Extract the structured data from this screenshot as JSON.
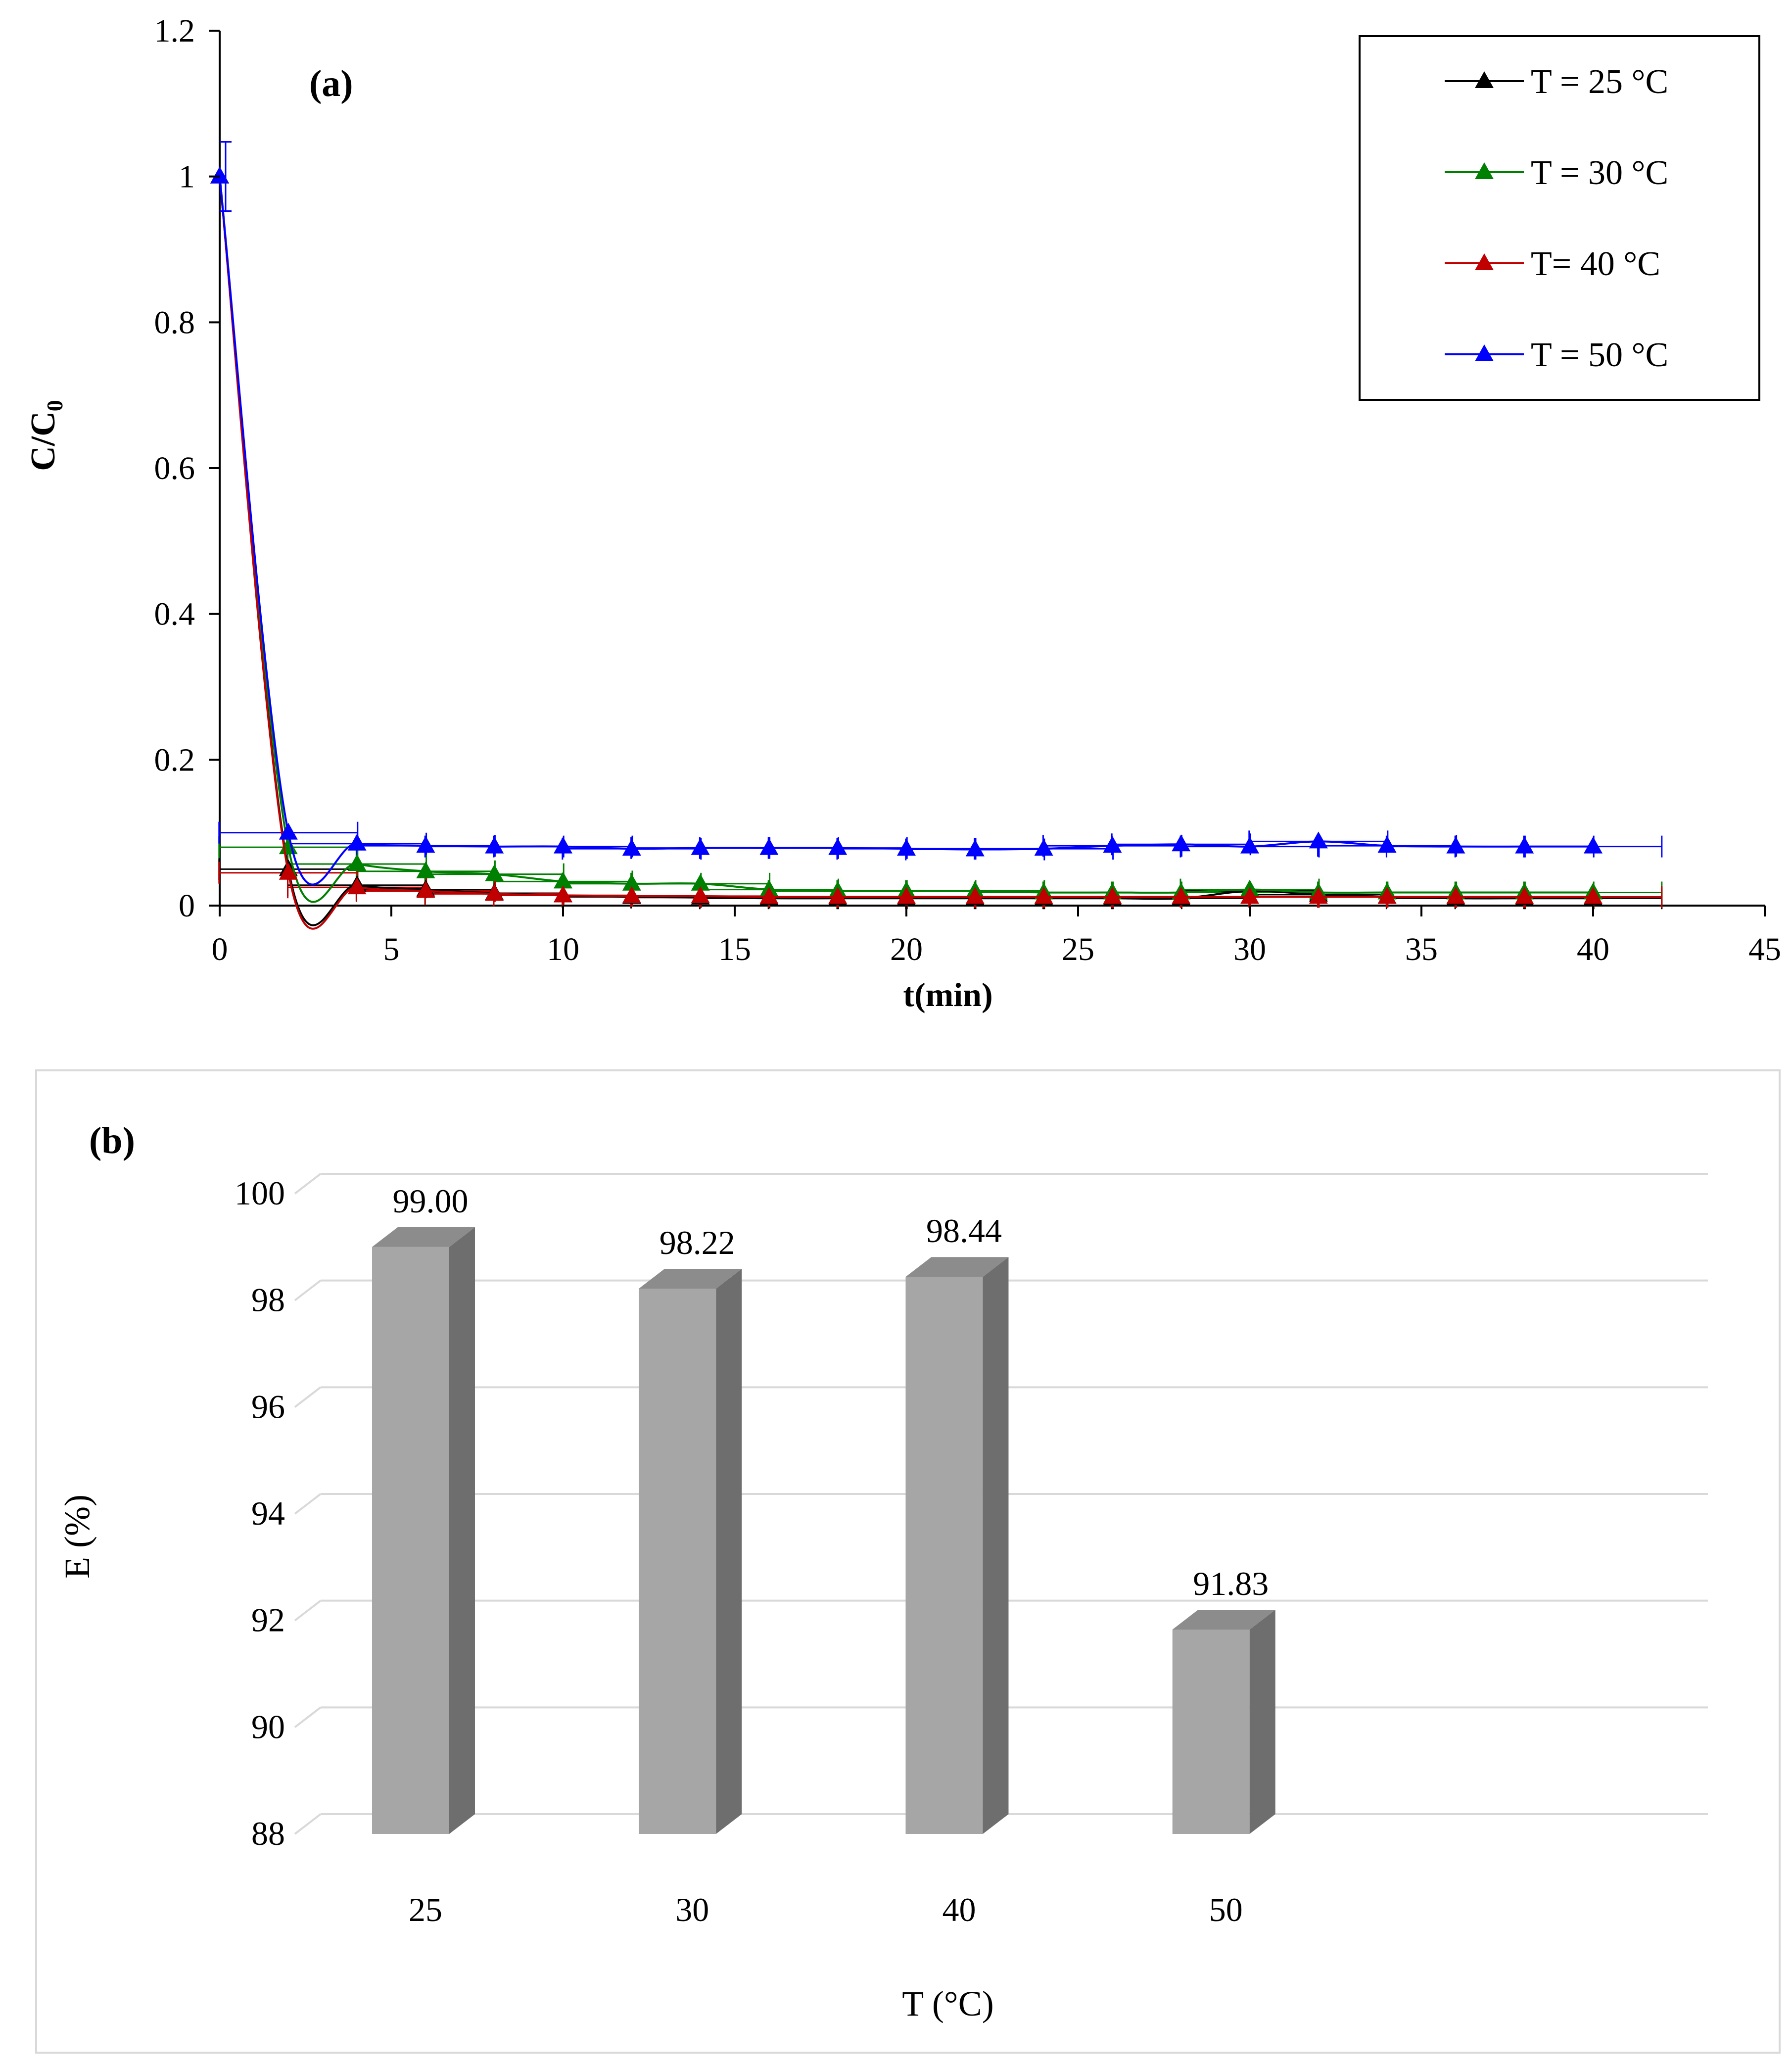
{
  "chart_data": [
    {
      "type": "line",
      "panel_label": "(a)",
      "xlabel": "t(min)",
      "ylabel": "C/C",
      "ylabel_sub": "0",
      "xlim": [
        0,
        45
      ],
      "ylim": [
        0,
        1.2
      ],
      "x_ticks": [
        "0",
        "5",
        "10",
        "15",
        "20",
        "25",
        "30",
        "35",
        "40",
        "45"
      ],
      "y_ticks": [
        "0",
        "0.2",
        "0.4",
        "0.6",
        "0.8",
        "1",
        "1.2"
      ],
      "x": [
        0,
        2,
        4,
        6,
        8,
        10,
        12,
        14,
        16,
        18,
        20,
        22,
        24,
        26,
        28,
        30,
        32,
        34,
        36,
        38,
        40
      ],
      "series": [
        {
          "name": "T = 25 °C",
          "color": "#000000",
          "values": [
            1.0,
            0.05,
            0.028,
            0.022,
            0.017,
            0.014,
            0.012,
            0.011,
            0.01,
            0.01,
            0.01,
            0.01,
            0.01,
            0.01,
            0.01,
            0.02,
            0.015,
            0.012,
            0.01,
            0.01,
            0.01
          ]
        },
        {
          "name": "T = 30 °C",
          "color": "#008000",
          "values": [
            1.0,
            0.08,
            0.057,
            0.047,
            0.043,
            0.033,
            0.03,
            0.03,
            0.022,
            0.02,
            0.02,
            0.02,
            0.018,
            0.018,
            0.018,
            0.022,
            0.018,
            0.018,
            0.018,
            0.018,
            0.018
          ]
        },
        {
          "name": "T= 40 °C",
          "color": "#c00000",
          "values": [
            1.0,
            0.045,
            0.025,
            0.02,
            0.016,
            0.014,
            0.013,
            0.013,
            0.012,
            0.012,
            0.012,
            0.012,
            0.012,
            0.012,
            0.012,
            0.012,
            0.012,
            0.012,
            0.012,
            0.012,
            0.012
          ]
        },
        {
          "name": "T = 50 °C",
          "color": "#0000ff",
          "values": [
            1.0,
            0.1,
            0.085,
            0.082,
            0.081,
            0.081,
            0.078,
            0.079,
            0.079,
            0.079,
            0.078,
            0.077,
            0.078,
            0.082,
            0.084,
            0.081,
            0.088,
            0.082,
            0.081,
            0.081,
            0.081
          ]
        }
      ]
    },
    {
      "type": "bar",
      "panel_label": "(b)",
      "xlabel": "T (°C)",
      "ylabel": "E (%)",
      "ylim": [
        88,
        100
      ],
      "y_ticks": [
        "88",
        "90",
        "92",
        "94",
        "96",
        "98",
        "100"
      ],
      "categories": [
        "25",
        "30",
        "40",
        "50"
      ],
      "values": [
        99.0,
        98.22,
        98.44,
        91.83
      ],
      "value_labels": [
        "99.00",
        "98.22",
        "98.44",
        "91.83"
      ],
      "bar_color": "#a6a6a6",
      "bar_side_color": "#6e6e6e"
    }
  ]
}
